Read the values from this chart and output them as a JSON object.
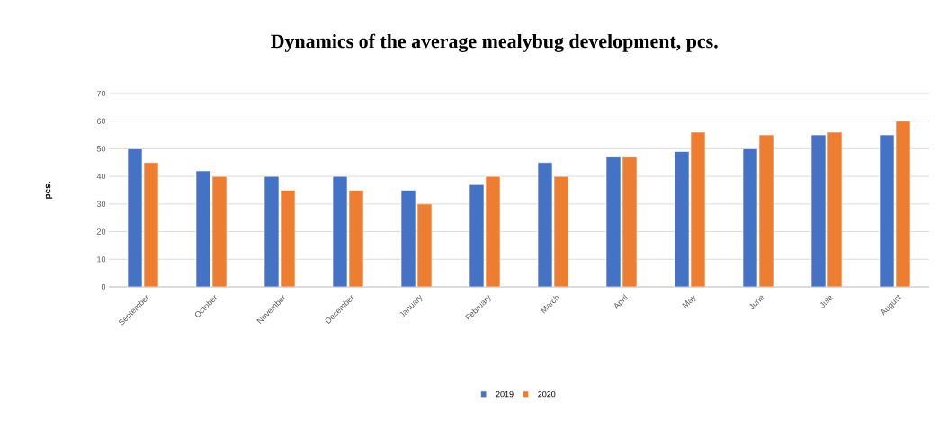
{
  "chart_data": {
    "type": "bar",
    "title": "Dynamics of the average mealybug development, pcs.",
    "ylabel": "pcs.",
    "categories": [
      "September",
      "October",
      "November",
      "December",
      "January",
      "February",
      "March",
      "April",
      "May",
      "June",
      "Jule",
      "August"
    ],
    "series": [
      {
        "name": "2019",
        "color": "#4472c4",
        "values": [
          50,
          42,
          40,
          40,
          35,
          37,
          45,
          47,
          49,
          50,
          55,
          55
        ]
      },
      {
        "name": "2020",
        "color": "#ed7d31",
        "values": [
          45,
          40,
          35,
          35,
          30,
          40,
          40,
          47,
          56,
          55,
          56,
          60
        ]
      }
    ],
    "ylim": [
      0,
      70
    ],
    "yticks": [
      0,
      10,
      20,
      30,
      40,
      50,
      60,
      70
    ],
    "grid": "y",
    "legend": "bottom"
  }
}
